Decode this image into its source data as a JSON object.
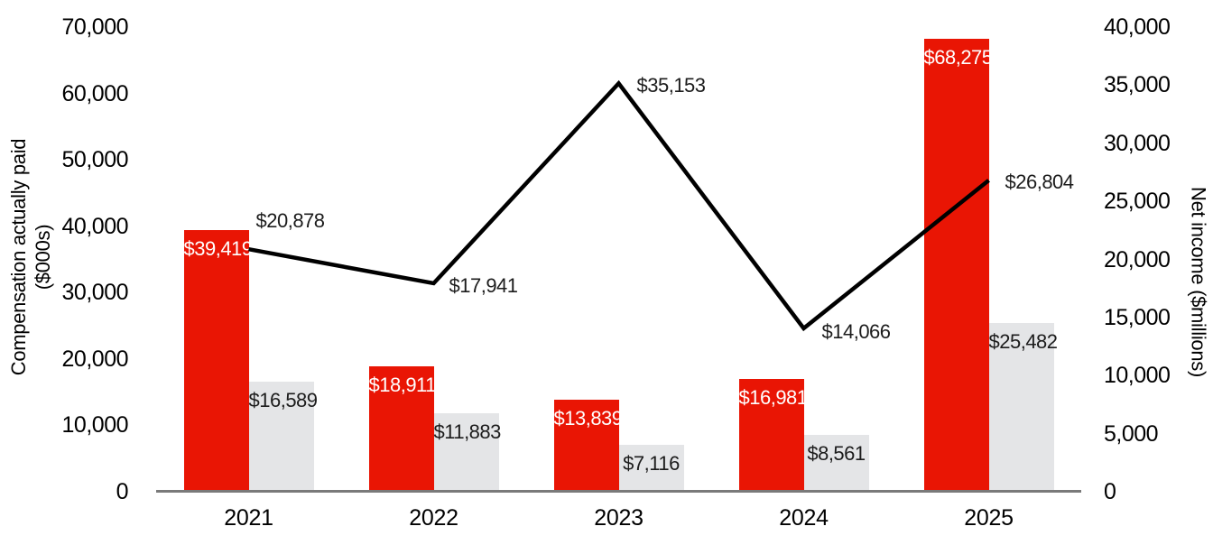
{
  "chart_data": {
    "type": "bar+line combo",
    "categories": [
      "2021",
      "2022",
      "2023",
      "2024",
      "2025"
    ],
    "series": [
      {
        "id": "red-bars",
        "type": "bar",
        "axis": "left",
        "values": [
          39419,
          18911,
          13839,
          16981,
          68275
        ],
        "labels": [
          "$39,419",
          "$18,911",
          "$13,839",
          "$16,981",
          "$68,275"
        ],
        "color": "#e91504",
        "label_color": "#ffffff"
      },
      {
        "id": "gray-bars",
        "type": "bar",
        "axis": "left",
        "values": [
          16589,
          11883,
          7116,
          8561,
          25482
        ],
        "labels": [
          "$16,589",
          "$11,883",
          "$7,116",
          "$8,561",
          "$25,482"
        ],
        "color": "#e4e5e7",
        "label_color": "#1c1c1c"
      },
      {
        "id": "net-income-line",
        "type": "line",
        "axis": "right",
        "values": [
          20878,
          17941,
          35153,
          14066,
          26804
        ],
        "labels": [
          "$20,878",
          "$17,941",
          "$35,153",
          "$14,066",
          "$26,804"
        ],
        "color": "#000000",
        "label_color": "#1c1c1c"
      }
    ],
    "left_axis": {
      "title_lines": [
        "Compensation actually paid",
        "($000s)"
      ],
      "min": 0,
      "max": 70000,
      "tick_labels": [
        "70,000",
        "60,000",
        "50,000",
        "40,000",
        "30,000",
        "20,000",
        "10,000",
        "0"
      ]
    },
    "right_axis": {
      "title": "Net income ($millions)",
      "min": 0,
      "max": 40000,
      "tick_labels": [
        "40,000",
        "35,000",
        "30,000",
        "25,000",
        "20,000",
        "15,000",
        "10,000",
        "5,000",
        "0"
      ]
    },
    "legend": "none",
    "grid": "off",
    "background": "#ffffff",
    "axis_line_color": "#7a7a7a"
  }
}
